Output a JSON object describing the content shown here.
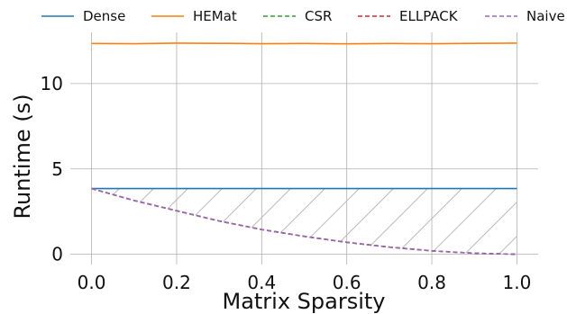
{
  "chart_data": {
    "type": "line",
    "title": "",
    "xlabel": "Matrix Sparsity",
    "ylabel": "Runtime (s)",
    "xlim": [
      -0.05,
      1.05
    ],
    "ylim": [
      -0.6,
      13.0
    ],
    "x_ticks": [
      0.0,
      0.2,
      0.4,
      0.6,
      0.8,
      1.0
    ],
    "x_tick_labels": [
      "0.0",
      "0.2",
      "0.4",
      "0.6",
      "0.8",
      "1.0"
    ],
    "y_ticks": [
      0,
      5,
      10
    ],
    "y_tick_labels": [
      "0",
      "5",
      "10"
    ],
    "grid": true,
    "legend_position": "top",
    "shaded_region": {
      "between": [
        "Dense",
        "CSR"
      ],
      "pattern": "diagonal-hatch",
      "color": "#bbbbbb"
    },
    "x": [
      0.0,
      0.1,
      0.2,
      0.3,
      0.4,
      0.5,
      0.6,
      0.7,
      0.8,
      0.9,
      1.0
    ],
    "series": [
      {
        "name": "Dense",
        "color": "#1f77b4",
        "dash": "solid",
        "values": [
          3.85,
          3.85,
          3.85,
          3.85,
          3.85,
          3.85,
          3.85,
          3.85,
          3.85,
          3.85,
          3.85
        ]
      },
      {
        "name": "HEMat",
        "color": "#ff7f0e",
        "dash": "solid",
        "values": [
          12.35,
          12.34,
          12.37,
          12.36,
          12.34,
          12.35,
          12.33,
          12.35,
          12.34,
          12.36,
          12.37
        ]
      },
      {
        "name": "CSR",
        "color": "#2ca02c",
        "dash": "dashed",
        "values": [
          3.85,
          3.15,
          2.55,
          1.95,
          1.45,
          1.05,
          0.7,
          0.42,
          0.2,
          0.06,
          0.0
        ]
      },
      {
        "name": "ELLPACK",
        "color": "#d62728",
        "dash": "dashed",
        "values": [
          3.85,
          3.15,
          2.55,
          1.95,
          1.45,
          1.05,
          0.7,
          0.42,
          0.2,
          0.06,
          0.0
        ]
      },
      {
        "name": "Naive",
        "color": "#9467bd",
        "dash": "dashed",
        "values": [
          3.85,
          3.15,
          2.55,
          1.95,
          1.45,
          1.05,
          0.7,
          0.42,
          0.2,
          0.06,
          0.0
        ]
      }
    ]
  }
}
